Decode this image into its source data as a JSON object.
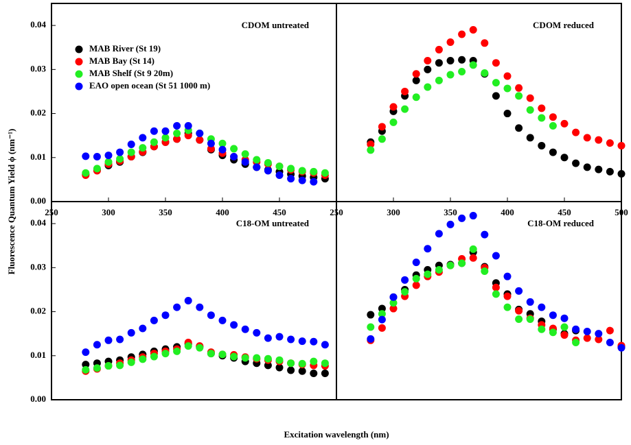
{
  "figure": {
    "xlabel": "Excitation wavelength (nm)",
    "ylabel": "Fluorescence Quantum Yield ϕ (nm⁻¹)"
  },
  "chart_data": [
    {
      "type": "scatter",
      "title": "CDOM untreated",
      "legend": "upper left",
      "x": [
        280,
        290,
        300,
        310,
        320,
        330,
        340,
        350,
        360,
        370,
        380,
        390,
        400,
        410,
        420,
        430,
        440,
        450,
        460,
        470,
        480,
        490,
        500
      ],
      "xlim": [
        250,
        500
      ],
      "xticks": [
        250,
        300,
        350,
        400,
        450
      ],
      "ylim": [
        0,
        0.045
      ],
      "yticks": [
        {
          "value": 0,
          "label": "0.00"
        },
        0.01,
        0.02,
        0.03,
        0.04
      ],
      "series": [
        {
          "name": "MAB River (St 19)",
          "color": "#000000",
          "values": [
            0.0062,
            0.0072,
            0.0082,
            0.009,
            0.0102,
            0.0112,
            0.0125,
            0.0135,
            0.0142,
            0.0155,
            0.014,
            0.0118,
            0.0105,
            0.0095,
            0.0085,
            0.0078,
            0.0072,
            0.0068,
            0.0062,
            0.0058,
            0.0055,
            0.0052,
            null
          ]
        },
        {
          "name": "MAB Bay (St 14)",
          "color": "#ff0000",
          "values": [
            0.006,
            0.007,
            0.0085,
            0.0092,
            0.0102,
            0.0113,
            0.0125,
            0.0135,
            0.0142,
            0.015,
            0.014,
            0.012,
            0.011,
            0.0102,
            0.0095,
            0.009,
            0.0085,
            0.008,
            0.0072,
            0.0068,
            0.0065,
            0.006,
            null
          ]
        },
        {
          "name": "MAB Shelf (St 9 20m)",
          "color": "#22ee22",
          "values": [
            0.0065,
            0.0075,
            0.009,
            0.0097,
            0.0112,
            0.0122,
            0.0135,
            0.0145,
            0.0155,
            0.0162,
            0.0155,
            0.0142,
            0.0132,
            0.012,
            0.0108,
            0.0095,
            0.0088,
            0.008,
            0.0075,
            0.007,
            0.0068,
            0.0065,
            null
          ]
        },
        {
          "name": "EAO open ocean (St 51 1000 m)",
          "color": "#0000ff",
          "values": [
            0.0103,
            0.0102,
            0.0105,
            0.0112,
            0.013,
            0.0145,
            0.016,
            0.016,
            0.0172,
            0.0172,
            0.0155,
            0.0132,
            0.0118,
            0.0102,
            0.009,
            0.0078,
            0.007,
            0.006,
            0.0052,
            0.0048,
            0.0045,
            null,
            null
          ]
        }
      ]
    },
    {
      "type": "scatter",
      "title": "CDOM reduced",
      "x": [
        280,
        290,
        300,
        310,
        320,
        330,
        340,
        350,
        360,
        370,
        380,
        390,
        400,
        410,
        420,
        430,
        440,
        450,
        460,
        470,
        480,
        490,
        500
      ],
      "xlim": [
        250,
        500
      ],
      "xticks": [
        250,
        300,
        350,
        400,
        450,
        500
      ],
      "ylim": [
        0,
        0.045
      ],
      "series": [
        {
          "color": "#000000",
          "values": [
            0.0135,
            0.016,
            0.0205,
            0.024,
            0.0275,
            0.03,
            0.0315,
            0.032,
            0.0322,
            0.032,
            0.029,
            0.024,
            0.02,
            0.0167,
            0.0145,
            0.0127,
            0.0112,
            0.01,
            0.0087,
            0.0078,
            0.0073,
            0.0068,
            0.0063
          ]
        },
        {
          "color": "#ff0000",
          "values": [
            0.013,
            0.017,
            0.0215,
            0.025,
            0.029,
            0.032,
            0.0345,
            0.0362,
            0.038,
            0.039,
            0.036,
            0.0315,
            0.0285,
            0.0258,
            0.0235,
            0.0212,
            0.0192,
            0.0177,
            0.0157,
            0.0145,
            0.014,
            0.0133,
            0.0127
          ]
        },
        {
          "color": "#22ee22",
          "values": [
            0.0117,
            0.0142,
            0.018,
            0.021,
            0.0237,
            0.026,
            0.0275,
            0.0288,
            0.0295,
            0.031,
            0.0292,
            0.027,
            0.0257,
            0.024,
            0.0208,
            0.019,
            0.0172,
            null,
            null,
            null,
            null,
            null,
            null
          ]
        }
      ]
    },
    {
      "type": "scatter",
      "title": "C18-OM untreated",
      "x": [
        280,
        290,
        300,
        310,
        320,
        330,
        340,
        350,
        360,
        370,
        380,
        390,
        400,
        410,
        420,
        430,
        440,
        450,
        460,
        470,
        480,
        490,
        500
      ],
      "xlim": [
        250,
        500
      ],
      "ylim": [
        0,
        0.045
      ],
      "yticks": [
        {
          "value": 0,
          "label": "0.00"
        },
        0.01,
        0.02,
        0.03,
        0.04
      ],
      "series": [
        {
          "color": "#000000",
          "values": [
            0.008,
            0.0083,
            0.0087,
            0.009,
            0.0097,
            0.0103,
            0.011,
            0.0115,
            0.012,
            0.0127,
            0.012,
            0.0105,
            0.01,
            0.0095,
            0.0087,
            0.0083,
            0.0078,
            0.0073,
            0.0067,
            0.0065,
            0.006,
            0.006,
            null
          ]
        },
        {
          "color": "#ff0000",
          "values": [
            0.0065,
            0.007,
            0.0077,
            0.0083,
            0.009,
            0.0097,
            0.0105,
            0.011,
            0.0115,
            0.013,
            0.0122,
            0.0108,
            0.0103,
            0.0102,
            0.0097,
            0.0093,
            0.009,
            0.0087,
            0.0083,
            0.008,
            0.0078,
            0.0077,
            null
          ]
        },
        {
          "color": "#22ee22",
          "values": [
            0.0068,
            0.0072,
            0.0077,
            0.0078,
            0.0085,
            0.0092,
            0.0098,
            0.0105,
            0.011,
            0.0122,
            0.0118,
            0.0105,
            0.0103,
            0.0098,
            0.0095,
            0.0095,
            0.0093,
            0.009,
            0.0083,
            0.0082,
            0.0087,
            0.0083,
            null
          ]
        },
        {
          "color": "#0000ff",
          "values": [
            0.0108,
            0.0125,
            0.0135,
            0.0137,
            0.0152,
            0.0162,
            0.018,
            0.0192,
            0.021,
            0.0225,
            0.021,
            0.0192,
            0.018,
            0.017,
            0.016,
            0.0152,
            0.014,
            0.0143,
            0.0137,
            0.0133,
            0.0132,
            0.0125,
            null
          ]
        }
      ]
    },
    {
      "type": "scatter",
      "title": "C18-OM reduced",
      "x": [
        280,
        290,
        300,
        310,
        320,
        330,
        340,
        350,
        360,
        370,
        380,
        390,
        400,
        410,
        420,
        430,
        440,
        450,
        460,
        470,
        480,
        490,
        500
      ],
      "xlim": [
        250,
        500
      ],
      "ylim": [
        0,
        0.045
      ],
      "series": [
        {
          "color": "#000000",
          "values": [
            0.0193,
            0.0207,
            0.0233,
            0.025,
            0.0283,
            0.0295,
            0.0305,
            0.0307,
            0.031,
            0.0335,
            0.0302,
            0.0265,
            0.024,
            0.0205,
            0.0195,
            0.0178,
            0.016,
            0.015,
            0.0157,
            null,
            null,
            null,
            0.012
          ]
        },
        {
          "color": "#ff0000",
          "values": [
            0.0135,
            0.0163,
            0.0207,
            0.0235,
            0.026,
            0.028,
            0.029,
            0.0305,
            0.032,
            0.0322,
            0.03,
            0.0255,
            0.0235,
            0.0202,
            0.0185,
            0.017,
            0.0162,
            0.0147,
            0.0135,
            0.014,
            0.0137,
            0.0157,
            0.0123
          ]
        },
        {
          "color": "#22ee22",
          "values": [
            0.0165,
            0.0195,
            0.022,
            0.0245,
            0.0275,
            0.0285,
            0.0295,
            0.0305,
            0.031,
            0.0342,
            0.0292,
            0.024,
            0.021,
            0.0183,
            0.0183,
            0.016,
            0.0153,
            0.0165,
            0.013,
            null,
            null,
            null,
            null
          ]
        },
        {
          "color": "#0000ff",
          "values": [
            0.0138,
            0.0182,
            0.0233,
            0.0272,
            0.0312,
            0.0343,
            0.0377,
            0.0398,
            0.0412,
            0.0418,
            0.0375,
            0.0327,
            0.028,
            0.0247,
            0.0222,
            0.021,
            0.0192,
            0.0185,
            0.016,
            0.0155,
            0.015,
            0.013,
            0.0118
          ]
        }
      ]
    }
  ]
}
